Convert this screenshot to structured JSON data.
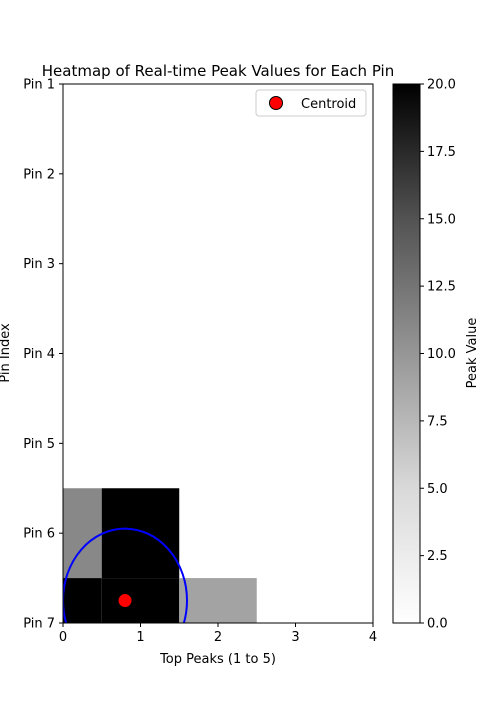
{
  "chart_data": {
    "type": "heatmap",
    "title": "Heatmap of Real-time Peak Values for Each Pin",
    "xlabel": "Top Peaks (1 to 5)",
    "ylabel": "Pin Index",
    "colorbar_label": "Peak Value",
    "xlim": [
      0,
      4
    ],
    "ylim_top": "Pin 1",
    "ylim_bottom": "Pin 7",
    "x_ticks": [
      0,
      1,
      2,
      3,
      4
    ],
    "x_tick_labels": [
      "0",
      "1",
      "2",
      "3",
      "4"
    ],
    "y_tick_labels": [
      "Pin 1",
      "Pin 2",
      "Pin 3",
      "Pin 4",
      "Pin 5",
      "Pin 6",
      "Pin 7"
    ],
    "colorbar_range": [
      0,
      20
    ],
    "colorbar_ticks": [
      0.0,
      2.5,
      5.0,
      7.5,
      10.0,
      12.5,
      15.0,
      17.5,
      20.0
    ],
    "colorbar_tick_labels": [
      "0.0",
      "2.5",
      "5.0",
      "7.5",
      "10.0",
      "12.5",
      "15.0",
      "17.5",
      "20.0"
    ],
    "colormap": "Greys",
    "cells": [
      {
        "pin": 6,
        "peak": 0,
        "value": 11
      },
      {
        "pin": 6,
        "peak": 1,
        "value": 20
      },
      {
        "pin": 7,
        "peak": 0,
        "value": 20
      },
      {
        "pin": 7,
        "peak": 1,
        "value": 20
      },
      {
        "pin": 7,
        "peak": 2,
        "value": 9
      }
    ],
    "centroid": {
      "x": 0.8,
      "y": 6.75
    },
    "centroid_color": "#ff0000",
    "circle": {
      "cx": 0.8,
      "cy": 6.75,
      "r": 0.8,
      "color": "#0000ff"
    },
    "legend": {
      "label": "Centroid",
      "position": "upper right"
    }
  }
}
